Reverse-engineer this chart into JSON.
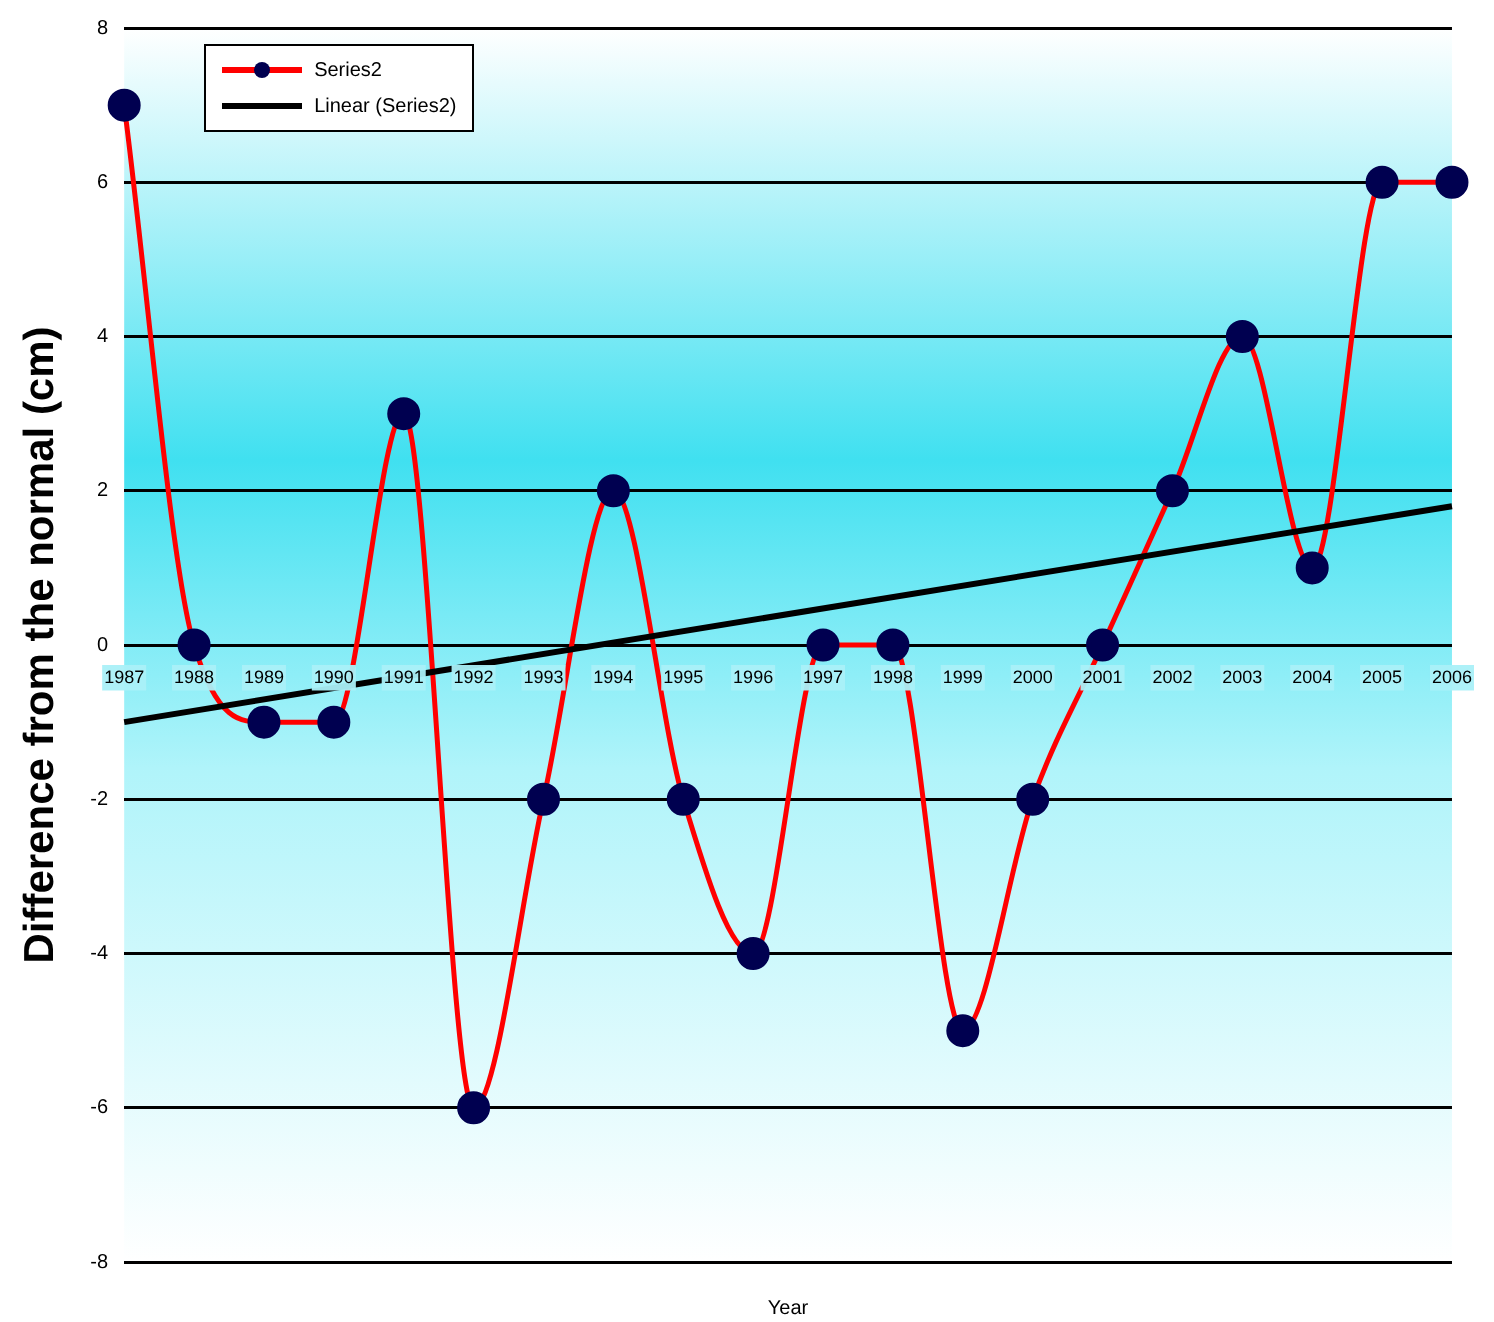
{
  "chart_data": {
    "type": "line",
    "xlabel": "Year",
    "ylabel": "Difference from the normal (cm)",
    "categories": [
      "1987",
      "1988",
      "1989",
      "1990",
      "1991",
      "1992",
      "1993",
      "1994",
      "1995",
      "1996",
      "1997",
      "1998",
      "1999",
      "2000",
      "2001",
      "2002",
      "2003",
      "2004",
      "2005",
      "2006"
    ],
    "series": [
      {
        "name": "Series2",
        "color": "#ff0000",
        "marker": "circle",
        "values": [
          7,
          0,
          -1,
          -1,
          3,
          -6,
          -2,
          2,
          -2,
          -4,
          0,
          0,
          -5,
          -2,
          0,
          2,
          4,
          1,
          6,
          6
        ]
      },
      {
        "name": "Linear (Series2)",
        "type": "line",
        "color": "#000000",
        "marker": "none",
        "values": [
          -1,
          null,
          null,
          null,
          null,
          null,
          null,
          null,
          null,
          null,
          null,
          null,
          null,
          null,
          null,
          null,
          null,
          null,
          null,
          1.8
        ]
      }
    ],
    "ylim": [
      -8,
      8
    ],
    "yticks": [
      -8,
      -6,
      -4,
      -2,
      0,
      2,
      4,
      6,
      8
    ],
    "grid": "y",
    "legend": "top left",
    "line_style": "solid"
  }
}
